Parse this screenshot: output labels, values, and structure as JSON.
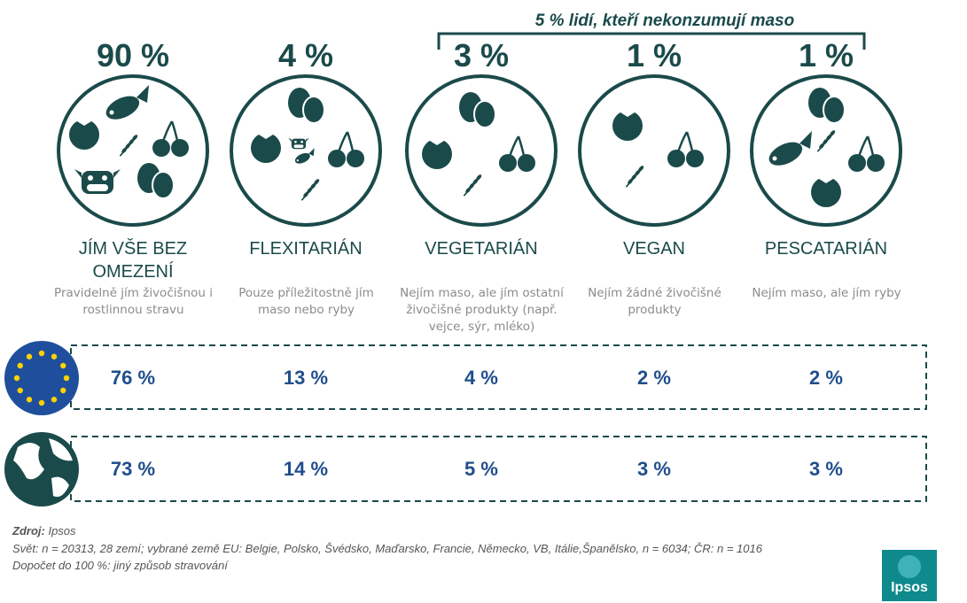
{
  "bracket_label": "5 % lidí, kteří nekonzumují maso",
  "columns": [
    {
      "percent": "90 %",
      "title": "JÍM VŠE BEZ OMEZENÍ",
      "description": "Pravidelně jím živočišnou i rostlinnou stravu"
    },
    {
      "percent": "4 %",
      "title": "FLEXITARIÁN",
      "description": "Pouze příležitostně jím maso nebo ryby"
    },
    {
      "percent": "3 %",
      "title": "VEGETARIÁN",
      "description": "Nejím maso, ale jím ostatní živočišné produkty (např. vejce, sýr, mléko)"
    },
    {
      "percent": "1 %",
      "title": "VEGAN",
      "description": "Nejím žádné živočišné produkty"
    },
    {
      "percent": "1 %",
      "title": "PESCATARIÁN",
      "description": "Nejím maso, ale jím ryby"
    }
  ],
  "rows": [
    {
      "values": [
        "76 %",
        "13 %",
        "4 %",
        "2 %",
        "2 %"
      ]
    },
    {
      "values": [
        "73 %",
        "14 %",
        "5 %",
        "3 %",
        "3 %"
      ]
    }
  ],
  "footer": {
    "source_label": "Zdroj:",
    "source": "Ipsos",
    "lines": [
      "Svět: n = 20313, 28 zemí; vybrané země EU: Belgie, Polsko, Švédsko, Maďarsko, Francie, Německo, VB, Itálie,Španělsko, n = 6034; ČR: n = 1016",
      "Dopočet do 100 %: jiný způsob stravování"
    ]
  },
  "logo": "Ipsos"
}
